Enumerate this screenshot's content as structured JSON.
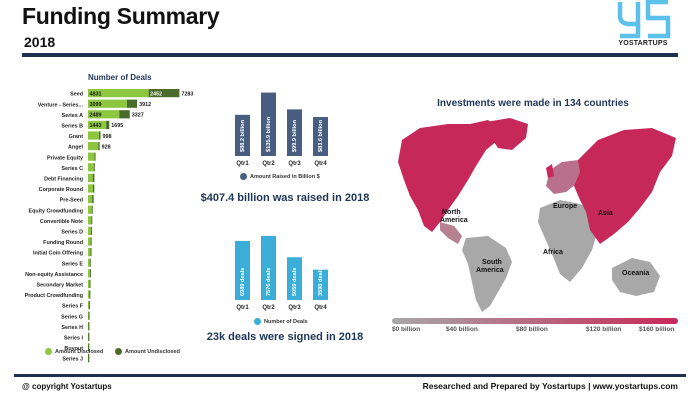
{
  "header": {
    "title": "Funding Summary",
    "subtitle": "2018",
    "logo_text": "YOSTARTUPS"
  },
  "colors": {
    "disclosed": "#8dc63f",
    "undisclosed": "#4a6b2a",
    "raised_bar": "#485e80",
    "deals_bar": "#3aaed8",
    "map_high": "#c7285a",
    "map_low": "#a8a8a8",
    "navy": "#1f2f4f"
  },
  "chart_data": [
    {
      "type": "bar",
      "orientation": "horizontal",
      "title": "Number of Deals",
      "categories": [
        "Seed",
        "Venture - Series...",
        "Series A",
        "Series B",
        "Grant",
        "Angel",
        "Private Equity",
        "Series C",
        "Debt Financing",
        "Corporate Round",
        "Pre-Seed",
        "Equity Crowdfunding",
        "Convertible Note",
        "Series D",
        "Funding Round",
        "Initial Coin Offering",
        "Series E",
        "Non-equity Assistance",
        "Secondary Market",
        "Product Crowdfunding",
        "Series F",
        "Series G",
        "Series H",
        "Series I",
        "Buyout",
        "Series J"
      ],
      "series": [
        {
          "name": "Amount Disclosed",
          "values": [
            4831,
            3099,
            2489,
            1443,
            880,
            820,
            520,
            460,
            380,
            400,
            330,
            300,
            260,
            230,
            210,
            200,
            140,
            150,
            120,
            110,
            70,
            45,
            25,
            15,
            10,
            5
          ]
        },
        {
          "name": "Amount Undisclosed",
          "values": [
            2452,
            813,
            838,
            252,
            118,
            108,
            80,
            60,
            130,
            100,
            120,
            40,
            70,
            30,
            60,
            60,
            20,
            60,
            30,
            20,
            10,
            5,
            5,
            5,
            5,
            3
          ]
        }
      ],
      "totals": [
        7283,
        3912,
        3327,
        1695,
        998,
        928
      ],
      "labeled_disclosed": [
        4831,
        3099,
        2489,
        1443
      ],
      "labeled_undisclosed": [
        2452,
        null,
        null,
        null
      ],
      "xlim": [
        0,
        7800
      ],
      "legend": "bottom"
    },
    {
      "type": "bar",
      "categories": [
        "Qtr1",
        "Qtr2",
        "Qtr3",
        "Qtr4"
      ],
      "values": [
        88.2,
        135.9,
        99.9,
        83.6
      ],
      "data_labels": [
        "$88.2 billion",
        "$135.9 billion",
        "$99.9 billion",
        "$83.6 billion"
      ],
      "series_name": "Amount Raised in Billion $",
      "ylim": [
        0,
        150
      ],
      "legend": "bottom"
    },
    {
      "type": "bar",
      "categories": [
        "Qtr1",
        "Qtr2",
        "Qtr3",
        "Qtr4"
      ],
      "values": [
        6989,
        7576,
        5059,
        3590
      ],
      "data_labels": [
        "6989 deals",
        "7576 deals",
        "5059 deals",
        "3590 deals"
      ],
      "series_name": "Number of Deals",
      "ylim": [
        0,
        8400
      ],
      "legend": "bottom"
    }
  ],
  "raised_headline": "$407.4 billion was raised in 2018",
  "deals_headline": "23k deals were signed in 2018",
  "map": {
    "title": "Investments were made in 134 countries",
    "regions": [
      "North America",
      "South America",
      "Europe",
      "Africa",
      "Asia",
      "Oceania"
    ],
    "scale_labels": [
      "$0 billion",
      "$40 billion",
      "$80 billion",
      "$120 billion",
      "$160 billion"
    ]
  },
  "footer": {
    "left": "@ copyright Yostartups",
    "right": "Researched and Prepared by Yostartups | www.yostartups.com"
  }
}
